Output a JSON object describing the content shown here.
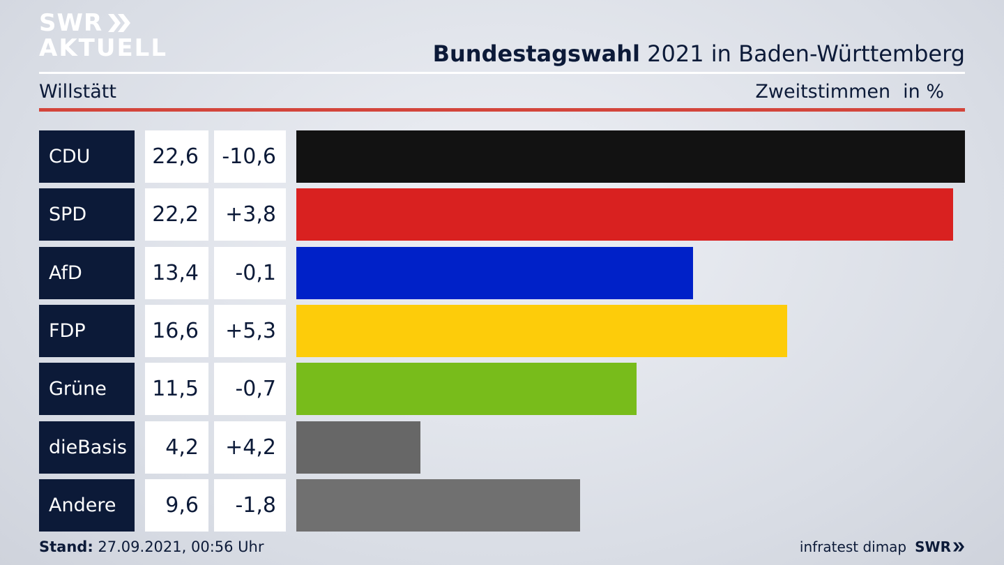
{
  "logo": {
    "line1": "SWR",
    "line2": "AKTUELL"
  },
  "header": {
    "title_bold": "Bundestagswahl",
    "title_rest": " 2021 in Baden-Württemberg",
    "place": "Willstätt",
    "metric": "Zweitstimmen",
    "unit": "in %"
  },
  "chart_data": {
    "type": "bar",
    "title": "Bundestagswahl 2021 in Baden-Württemberg",
    "subtitle": "Willstätt",
    "ylabel": "Zweitstimmen in %",
    "categories": [
      "CDU",
      "SPD",
      "AfD",
      "FDP",
      "Grüne",
      "dieBasis",
      "Andere"
    ],
    "values": [
      22.6,
      22.2,
      13.4,
      16.6,
      11.5,
      4.2,
      9.6
    ],
    "values_label": [
      "22,6",
      "22,2",
      "13,4",
      "16,6",
      "11,5",
      "4,2",
      "9,6"
    ],
    "diff_label": [
      "-10,6",
      "+3,8",
      "-0,1",
      "+5,3",
      "-0,7",
      "+4,2",
      "-1,8"
    ],
    "colors": [
      "#121212",
      "#d92120",
      "#0021c8",
      "#fdcc0a",
      "#78bc1b",
      "#676767",
      "#707070"
    ],
    "xlim": [
      0,
      22.6
    ]
  },
  "footer": {
    "stand_label": "Stand:",
    "stand_value": " 27.09.2021, 00:56 Uhr",
    "source": "infratest dimap",
    "brand": "SWR"
  }
}
